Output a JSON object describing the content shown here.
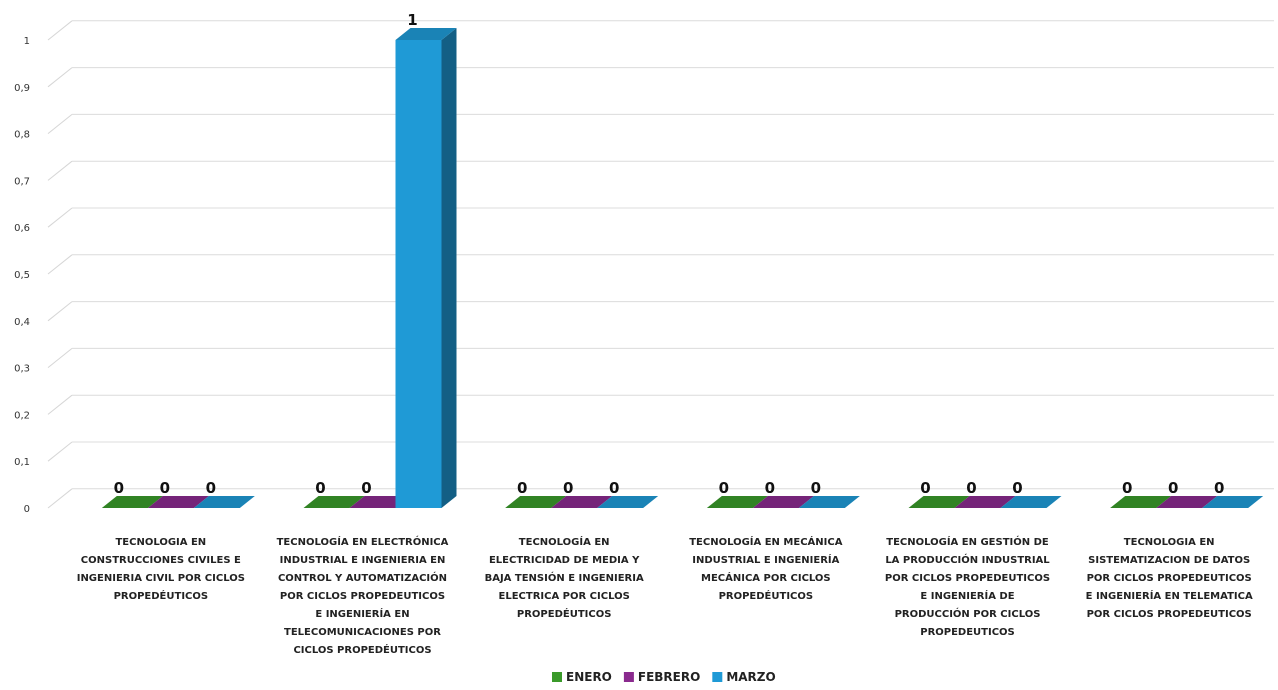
{
  "chart_data": {
    "type": "bar",
    "title": "",
    "xlabel": "",
    "ylabel": "",
    "ylim": [
      0,
      1
    ],
    "y_ticks": [
      "0",
      "0,1",
      "0,2",
      "0,3",
      "0,4",
      "0,5",
      "0,6",
      "0,7",
      "0,8",
      "0,9",
      "1"
    ],
    "grid": true,
    "legend_position": "bottom",
    "categories": [
      [
        "TECNOLOGIA EN",
        "CONSTRUCCIONES CIVILES E",
        "INGENIERIA CIVIL POR CICLOS",
        "PROPEDÉUTICOS"
      ],
      [
        "TECNOLOGÍA EN ELECTRÓNICA",
        "INDUSTRIAL E INGENIERIA EN",
        "CONTROL Y AUTOMATIZACIÓN",
        "POR CICLOS PROPEDEUTICOS",
        "E INGENIERÍA EN",
        "TELECOMUNICACIONES POR",
        "CICLOS PROPEDÉUTICOS"
      ],
      [
        "TECNOLOGÍA EN",
        "ELECTRICIDAD DE MEDIA Y",
        "BAJA TENSIÓN E INGENIERIA",
        "ELECTRICA POR CICLOS",
        "PROPEDÉUTICOS"
      ],
      [
        "TECNOLOGÍA EN MECÁNICA",
        "INDUSTRIAL E INGENIERÍA",
        "MECÁNICA POR CICLOS",
        "PROPEDÉUTICOS"
      ],
      [
        "TECNOLOGÍA EN GESTIÓN DE",
        "LA PRODUCCIÓN INDUSTRIAL",
        "POR CICLOS PROPEDEUTICOS",
        "E INGENIERÍA DE",
        "PRODUCCIÓN POR CICLOS",
        "PROPEDEUTICOS"
      ],
      [
        "TECNOLOGIA EN",
        "SISTEMATIZACION DE DATOS",
        "POR CICLOS PROPEDEUTICOS",
        "E INGENIERÍA EN TELEMATICA",
        "POR CICLOS PROPEDEUTICOS"
      ]
    ],
    "series": [
      {
        "name": "ENERO",
        "color": "#3a9a2a",
        "values": [
          0,
          0,
          0,
          0,
          0,
          0
        ],
        "labels": [
          "0",
          "0",
          "0",
          "0",
          "0",
          "0"
        ]
      },
      {
        "name": "FEBRERO",
        "color": "#8a2a8e",
        "values": [
          0,
          0,
          0,
          0,
          0,
          0
        ],
        "labels": [
          "0",
          "0",
          "0",
          "0",
          "0",
          "0"
        ]
      },
      {
        "name": "MARZO",
        "color": "#1f9ad6",
        "values": [
          0,
          1,
          0,
          0,
          0,
          0
        ],
        "labels": [
          "0",
          "1",
          "0",
          "0",
          "0",
          "0"
        ]
      }
    ]
  }
}
